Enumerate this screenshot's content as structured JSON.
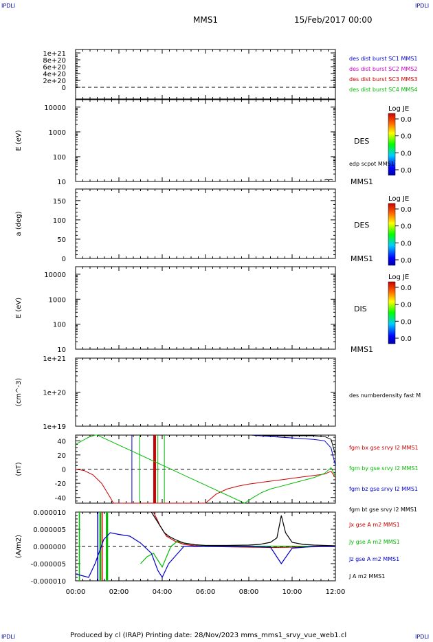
{
  "corner_label": "IPDLI",
  "header": {
    "spacecraft": "MMS1",
    "date": "15/Feb/2017 00:00"
  },
  "footer": {
    "text": "Produced by cl (IRAP)   Printing date: 28/Nov/2023   mms_mms1_srvy_vue_web1.cl"
  },
  "time_axis": {
    "ticks": [
      "00:00",
      "02:00",
      "04:00",
      "06:00",
      "08:00",
      "10:00",
      "12:00"
    ],
    "range_hours": [
      0,
      12
    ]
  },
  "colorbar": {
    "title": "Log JE",
    "ticks": [
      "0.0",
      "0.0",
      "0.0",
      "0.0"
    ]
  },
  "chart_data": [
    {
      "type": "line",
      "panel": "des-dist-burst",
      "yticks": [
        "1e+21",
        "8e+20",
        "6e+20",
        "4e+20",
        "2e+20",
        "0"
      ],
      "ylabel": "",
      "legend": [
        {
          "name": "des dist burst SC1 MMS1",
          "color": "#0000cc"
        },
        {
          "name": "des dist burst SC2 MMS2",
          "color": "#cc00cc"
        },
        {
          "name": "des dist burst SC3 MMS3",
          "color": "#cc0000"
        },
        {
          "name": "des dist burst SC4 MMS4",
          "color": "#00bb00"
        }
      ]
    },
    {
      "type": "heatmap",
      "panel": "des-energy",
      "ylabel": "E (eV)",
      "yscale": "log",
      "ylim": [
        10,
        20000
      ],
      "yticks": [
        "10000",
        "1000",
        "100",
        "10"
      ],
      "instrument": "DES",
      "overlay": "edp scpot MMS1",
      "spacecraft": "MMS1"
    },
    {
      "type": "heatmap",
      "panel": "des-pitch",
      "ylabel": "a (deg)",
      "ylim": [
        0,
        180
      ],
      "yticks": [
        "150",
        "100",
        "50",
        "0"
      ],
      "instrument": "DES",
      "spacecraft": "MMS1"
    },
    {
      "type": "heatmap",
      "panel": "dis-energy",
      "ylabel": "E (eV)",
      "yscale": "log",
      "ylim": [
        10,
        20000
      ],
      "yticks": [
        "10000",
        "1000",
        "100",
        "10"
      ],
      "instrument": "DIS",
      "spacecraft": "MMS1"
    },
    {
      "type": "line",
      "panel": "density",
      "ylabel": "(cm^-3)",
      "yscale": "log",
      "ylim": [
        1e+19,
        1e+21
      ],
      "yticks": [
        "1e+21",
        "1e+20",
        "1e+19"
      ],
      "legend": [
        {
          "name": "des numberdensity fast M",
          "color": "#000000"
        }
      ]
    },
    {
      "type": "line",
      "panel": "fgm",
      "ylabel": "(nT)",
      "ylim": [
        -48,
        48
      ],
      "yticks": [
        "40",
        "20",
        "0",
        "-20",
        "-40"
      ],
      "legend": [
        {
          "name": "fgm bx gse srvy l2 MMS1",
          "color": "#cc0000"
        },
        {
          "name": "fgm by gse srvy l2 MMS1",
          "color": "#00bb00"
        },
        {
          "name": "fgm bz gse srvy l2 MMS1",
          "color": "#0000cc"
        },
        {
          "name": "fgm bt gse srvy l2 MMS1",
          "color": "#000000"
        }
      ],
      "series": [
        {
          "name": "fgm bx gse srvy l2 MMS1",
          "color": "#cc0000",
          "x": [
            0,
            0.4,
            0.8,
            1.2,
            1.6,
            1.75,
            6.0,
            6.5,
            7.0,
            7.5,
            8.0,
            8.5,
            9.0,
            9.5,
            10.0,
            10.5,
            11.0,
            11.5,
            11.8,
            12.0
          ],
          "y": [
            0,
            -2,
            -8,
            -20,
            -40,
            -50,
            -50,
            -35,
            -28,
            -24,
            -21,
            -19,
            -17,
            -15,
            -13,
            -11,
            -9,
            -7,
            -3,
            -12
          ]
        },
        {
          "name": "fgm by gse srvy l2 MMS1",
          "color": "#00bb00",
          "x": [
            0,
            0.3,
            0.6,
            0.9,
            1.0,
            7.8,
            8.2,
            8.6,
            9.0,
            9.5,
            10.0,
            10.5,
            11.0,
            11.5,
            11.8,
            12.0
          ],
          "y": [
            35,
            40,
            45,
            49,
            50,
            -50,
            -40,
            -33,
            -28,
            -24,
            -20,
            -16,
            -12,
            -6,
            2,
            -10
          ]
        },
        {
          "name": "fgm bz gse srvy l2 MMS1",
          "color": "#0000cc",
          "x": [
            8.1,
            8.5,
            9.0,
            9.5,
            10.0,
            10.5,
            11.0,
            11.5,
            11.8,
            12.0
          ],
          "y": [
            50,
            47,
            46,
            45,
            44,
            43,
            42,
            40,
            30,
            5
          ]
        },
        {
          "name": "fgm bt gse srvy l2 MMS1",
          "color": "#000000",
          "x": [
            8.0,
            8.5,
            9.0,
            9.5,
            10.0,
            10.5,
            11.0,
            11.5,
            11.8,
            12.0
          ],
          "y": [
            50,
            48,
            47,
            47,
            47,
            47,
            47,
            46,
            42,
            20
          ]
        }
      ]
    },
    {
      "type": "line",
      "panel": "current-density",
      "ylabel": "(A/m2)",
      "ylim": [
        -1e-05,
        1e-05
      ],
      "yticks": [
        "0.000010",
        "0.000005",
        "0.000000",
        "-0.000005",
        "-0.000010"
      ],
      "legend": [
        {
          "name": "Jx gse A m2 MMS1",
          "color": "#cc0000"
        },
        {
          "name": "Jy gse A m2 MMS1",
          "color": "#00bb00"
        },
        {
          "name": "Jz gse A m2 MMS1",
          "color": "#0000cc"
        },
        {
          "name": "J A m2 MMS1",
          "color": "#000000"
        }
      ],
      "series": [
        {
          "name": "Jx gse A m2 MMS1",
          "color": "#cc0000",
          "x": [
            3.6,
            3.9,
            4.2,
            4.6,
            5.0,
            5.5,
            6.0,
            7.0,
            8.0,
            9.0,
            10.0,
            11.0,
            12.0
          ],
          "y": [
            1e-05,
            6e-06,
            3e-06,
            1.5e-06,
            6e-07,
            2e-07,
            0,
            -1e-07,
            -2e-07,
            -3e-07,
            -2e-07,
            -1e-07,
            0
          ]
        },
        {
          "name": "Jy gse A m2 MMS1",
          "color": "#00bb00",
          "x": [
            3.0,
            3.3,
            3.6,
            3.8,
            4.0,
            4.2,
            4.4,
            4.7,
            5.0,
            5.5,
            6.0,
            8.0,
            10.0,
            12.0
          ],
          "y": [
            -5e-06,
            -3e-06,
            -2e-06,
            -4e-06,
            -6e-06,
            -3e-06,
            0,
            1.5e-06,
            1e-06,
            5e-07,
            2e-07,
            1e-07,
            1e-07,
            0
          ]
        },
        {
          "name": "Jz gse A m2 MMS1",
          "color": "#0000cc",
          "x": [
            0,
            0.3,
            0.6,
            0.9,
            1.3,
            1.6,
            2.0,
            2.5,
            3.0,
            3.5,
            3.8,
            4.0,
            4.3,
            5.0,
            6.0,
            7.0,
            8.0,
            9.0,
            9.5,
            10.0,
            11.0,
            12.0
          ],
          "y": [
            -8e-06,
            -8.5e-06,
            -9e-06,
            -5e-06,
            2e-06,
            4e-06,
            3.5e-06,
            3e-06,
            1e-06,
            -2e-06,
            -7e-06,
            -9e-06,
            -5e-06,
            0,
            0,
            0,
            0,
            -2e-07,
            -5e-06,
            -5e-07,
            0,
            0
          ]
        },
        {
          "name": "J A m2 MMS1",
          "color": "#000000",
          "x": [
            3.5,
            3.7,
            3.9,
            4.1,
            4.3,
            4.6,
            5.0,
            5.5,
            6.0,
            7.0,
            8.0,
            8.5,
            9.0,
            9.3,
            9.5,
            9.7,
            10.0,
            10.5,
            11.0,
            11.5,
            12.0
          ],
          "y": [
            1e-05,
            8e-06,
            6e-06,
            4e-06,
            3e-06,
            2e-06,
            1e-06,
            5e-07,
            3e-07,
            3e-07,
            4e-07,
            6e-07,
            1.2e-06,
            2.5e-06,
            9e-06,
            4e-06,
            1.2e-06,
            6e-07,
            4e-07,
            3e-07,
            2e-07
          ]
        }
      ],
      "bands": [
        {
          "color": "#00bb00",
          "x_start": 0.15,
          "x_end": 0.2
        },
        {
          "color": "#0000cc",
          "x_start": 1.0,
          "x_end": 1.05
        },
        {
          "color": "#00bb00",
          "x_start": 1.1,
          "x_end": 1.18
        },
        {
          "color": "#cc0000",
          "x_start": 1.2,
          "x_end": 1.25
        },
        {
          "color": "#00bb00",
          "x_start": 1.4,
          "x_end": 1.5
        }
      ]
    }
  ]
}
